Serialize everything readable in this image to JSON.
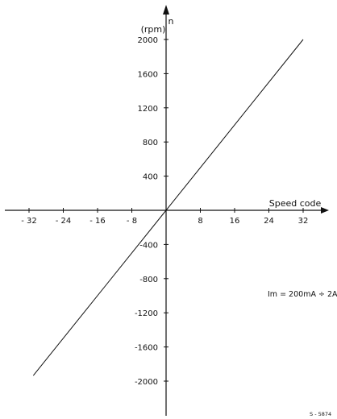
{
  "chart_data": {
    "type": "line",
    "title": "",
    "xlabel": "Speed code",
    "ylabel": "n\n(rpm)",
    "xlim": [
      -34,
      36
    ],
    "ylim": [
      -2200,
      2200
    ],
    "x_ticks": [
      -32,
      -24,
      -16,
      -8,
      8,
      16,
      24,
      32
    ],
    "x_tick_labels": [
      "- 32",
      "- 24",
      "- 16",
      "- 8",
      "8",
      "16",
      "24",
      "32"
    ],
    "y_ticks": [
      2000,
      1600,
      1200,
      800,
      400,
      -400,
      -800,
      -1200,
      -1600,
      -2000
    ],
    "y_tick_labels": [
      "2000",
      "1600",
      "1200",
      "800",
      "400",
      "-400",
      "-800",
      "-1200",
      "-1600",
      "-2000"
    ],
    "grid": false,
    "series": [
      {
        "values": [
          {
            "x": -31,
            "y": -1935
          },
          {
            "x": 0,
            "y": 0
          },
          {
            "x": 32,
            "y": 2000
          }
        ]
      }
    ],
    "annotations": [
      "Im = 200mA ÷ 2A",
      "S - 5874"
    ],
    "colors": {
      "line": "#111111",
      "text": "#111111",
      "background": "#ffffff"
    }
  }
}
